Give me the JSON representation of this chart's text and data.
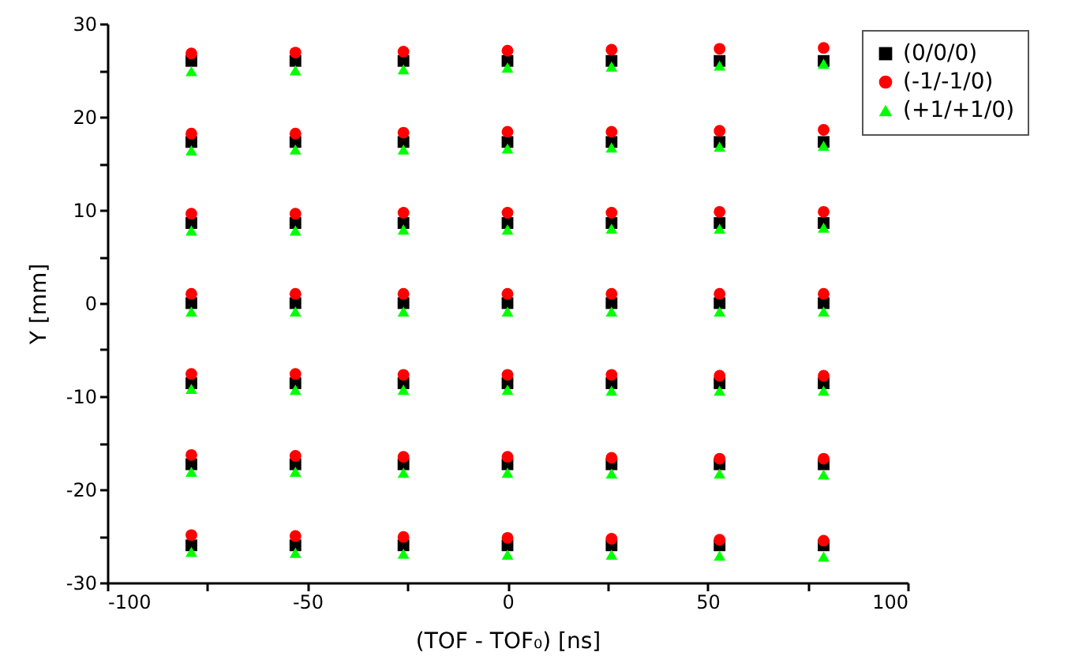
{
  "chart_data": {
    "type": "scatter",
    "xlabel": "(TOF - TOF₀) [ns]",
    "ylabel": "Y [mm]",
    "xlim": [
      -100,
      100
    ],
    "ylim": [
      -30,
      30
    ],
    "xticks": [
      -100,
      {
        "value": -75,
        "label": null
      },
      -50,
      {
        "value": -25,
        "label": null
      },
      0,
      {
        "value": 25,
        "label": null
      },
      50,
      {
        "value": 75,
        "label": null
      },
      100
    ],
    "yticks": [
      -30,
      {
        "value": -25,
        "label": null
      },
      -20,
      {
        "value": -15,
        "label": null
      },
      -10,
      {
        "value": -5,
        "label": null
      },
      0,
      {
        "value": 5,
        "label": null
      },
      10,
      {
        "value": 15,
        "label": null
      },
      20,
      {
        "value": 25,
        "label": null
      },
      30
    ],
    "grid": false,
    "legend": "top right",
    "series": [
      {
        "name": "(0/0/0)",
        "color": "#000000",
        "marker": "square",
        "x": [
          -79,
          -53,
          -26,
          0,
          26,
          53,
          79,
          -79,
          -53,
          -26,
          0,
          26,
          53,
          79,
          -79,
          -53,
          -26,
          0,
          26,
          53,
          79,
          -79,
          -53,
          -26,
          0,
          26,
          53,
          79,
          -79,
          -53,
          -26,
          0,
          26,
          53,
          79,
          -79,
          -53,
          -26,
          0,
          26,
          53,
          79,
          -79,
          -53,
          -26,
          0,
          26,
          53,
          79
        ],
        "values": [
          26,
          26,
          26,
          26,
          26,
          26,
          26,
          17.3,
          17.3,
          17.3,
          17.3,
          17.3,
          17.3,
          17.3,
          8.6,
          8.6,
          8.6,
          8.6,
          8.6,
          8.6,
          8.6,
          0,
          0,
          0,
          0,
          0,
          0,
          0,
          -8.6,
          -8.6,
          -8.6,
          -8.6,
          -8.6,
          -8.6,
          -8.6,
          -17.3,
          -17.3,
          -17.3,
          -17.3,
          -17.3,
          -17.3,
          -17.3,
          -26,
          -26,
          -26,
          -26,
          -26,
          -26,
          -26
        ]
      },
      {
        "name": "(-1/-1/0)",
        "color": "#ff0000",
        "marker": "circle",
        "x": [
          -79,
          -53,
          -26,
          0,
          26,
          53,
          79,
          -79,
          -53,
          -26,
          0,
          26,
          53,
          79,
          -79,
          -53,
          -26,
          0,
          26,
          53,
          79,
          -79,
          -53,
          -26,
          0,
          26,
          53,
          79,
          -79,
          -53,
          -26,
          0,
          26,
          53,
          79,
          -79,
          -53,
          -26,
          0,
          26,
          53,
          79,
          -79,
          -53,
          -26,
          0,
          26,
          53,
          79
        ],
        "values": [
          26.8,
          26.9,
          27,
          27.1,
          27.2,
          27.3,
          27.4,
          18.2,
          18.2,
          18.3,
          18.4,
          18.4,
          18.5,
          18.6,
          9.6,
          9.6,
          9.7,
          9.7,
          9.7,
          9.8,
          9.8,
          1,
          1,
          1,
          1,
          1,
          1,
          1,
          -7.6,
          -7.6,
          -7.7,
          -7.7,
          -7.7,
          -7.8,
          -7.8,
          -16.3,
          -16.4,
          -16.5,
          -16.5,
          -16.6,
          -16.7,
          -16.7,
          -24.9,
          -25,
          -25.1,
          -25.2,
          -25.3,
          -25.4,
          -25.5
        ]
      },
      {
        "name": "(+1/+1/0)",
        "color": "#00ff00",
        "marker": "triangle",
        "x": [
          -79,
          -53,
          -26,
          0,
          26,
          53,
          79,
          -79,
          -53,
          -26,
          0,
          26,
          53,
          79,
          -79,
          -53,
          -26,
          0,
          26,
          53,
          79,
          -79,
          -53,
          -26,
          0,
          26,
          53,
          79,
          -79,
          -53,
          -26,
          0,
          26,
          53,
          79,
          -79,
          -53,
          -26,
          0,
          26,
          53,
          79,
          -79,
          -53,
          -26,
          0,
          26,
          53,
          79
        ],
        "values": [
          24.9,
          25,
          25.1,
          25.3,
          25.4,
          25.5,
          25.7,
          16.4,
          16.5,
          16.5,
          16.6,
          16.7,
          16.8,
          16.9,
          7.8,
          7.8,
          7.9,
          7.9,
          8,
          8,
          8.1,
          -0.9,
          -0.9,
          -0.9,
          -0.9,
          -0.9,
          -0.9,
          -0.9,
          -9.2,
          -9.3,
          -9.3,
          -9.3,
          -9.4,
          -9.4,
          -9.4,
          -18.1,
          -18.1,
          -18.2,
          -18.2,
          -18.3,
          -18.3,
          -18.4,
          -26.7,
          -26.8,
          -26.9,
          -27,
          -27,
          -27.1,
          -27.2
        ]
      }
    ]
  }
}
